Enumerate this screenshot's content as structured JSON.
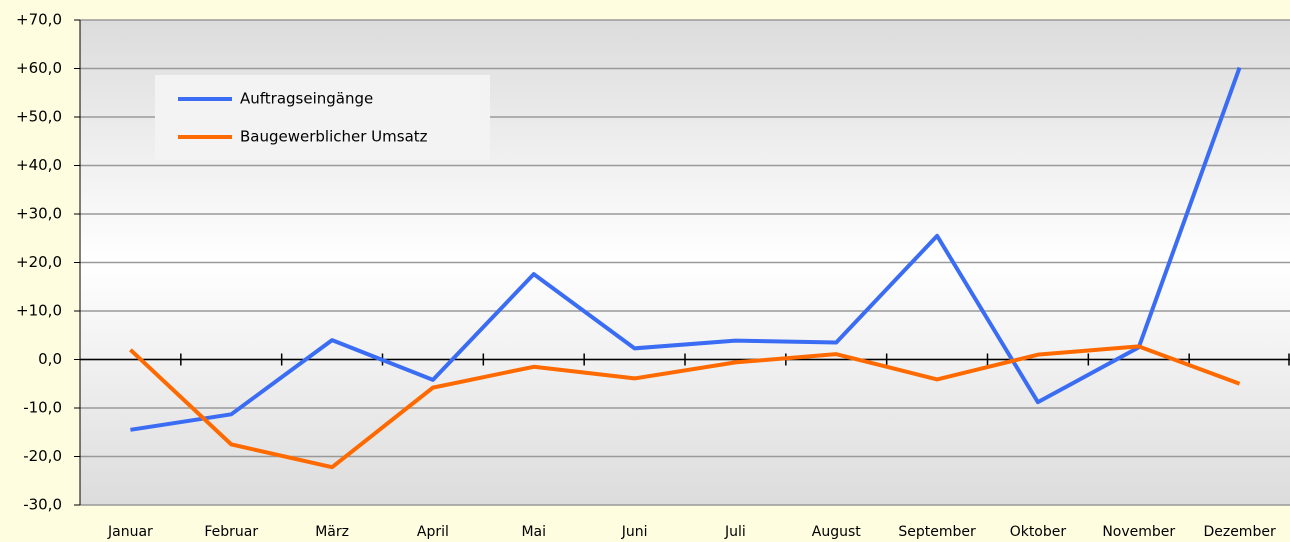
{
  "chart_data": {
    "type": "line",
    "categories": [
      "Januar",
      "Februar",
      "März",
      "April",
      "Mai",
      "Juni",
      "Juli",
      "August",
      "September",
      "Oktober",
      "November",
      "Dezember"
    ],
    "series": [
      {
        "name": "Auftragseingänge",
        "color": "#3a6cf4",
        "values": [
          -14.5,
          -11.3,
          4.0,
          -4.2,
          17.6,
          2.3,
          3.9,
          3.5,
          25.5,
          -8.8,
          2.5,
          60.2
        ]
      },
      {
        "name": "Baugewerblicher Umsatz",
        "color": "#ff6a00",
        "values": [
          2.0,
          -17.5,
          -22.2,
          -5.8,
          -1.5,
          -3.9,
          -0.6,
          1.1,
          -4.1,
          1.0,
          2.7,
          -5.0
        ]
      }
    ],
    "ylim": [
      -30,
      70
    ],
    "yticks": [
      {
        "value": -30,
        "label": "-30,0"
      },
      {
        "value": -20,
        "label": "-20,0"
      },
      {
        "value": -10,
        "label": "-10,0"
      },
      {
        "value": 0,
        "label": "0,0"
      },
      {
        "value": 10,
        "label": "+10,0"
      },
      {
        "value": 20,
        "label": "+20,0"
      },
      {
        "value": 30,
        "label": "+30,0"
      },
      {
        "value": 40,
        "label": "+40,0"
      },
      {
        "value": 50,
        "label": "+50,0"
      },
      {
        "value": 60,
        "label": "+60,0"
      },
      {
        "value": 70,
        "label": "+70,0"
      }
    ],
    "grid": true,
    "legend": "top-left"
  }
}
